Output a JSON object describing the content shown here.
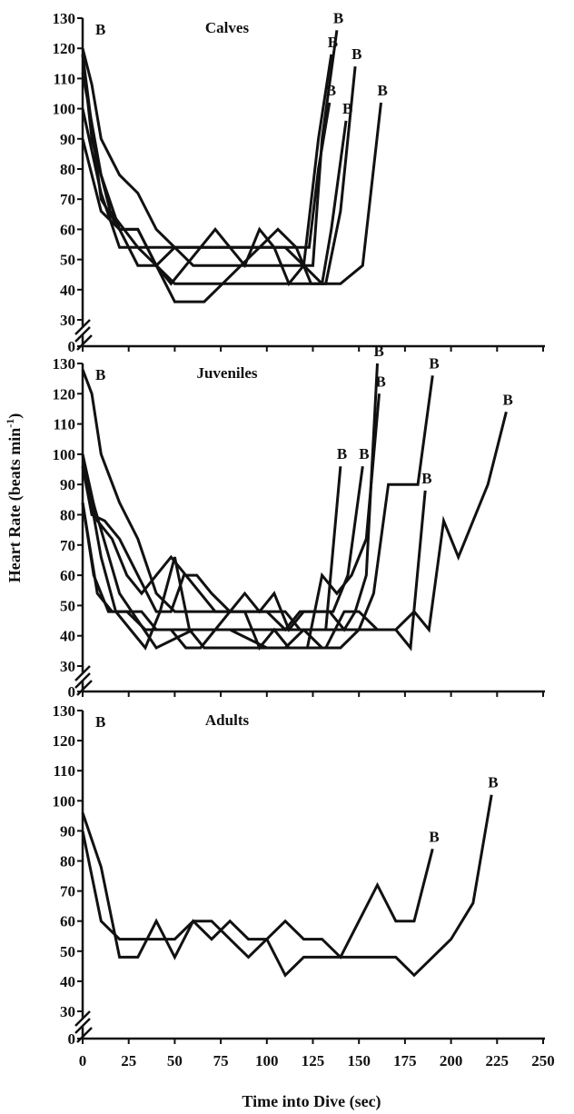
{
  "figure": {
    "ylabel": "Heart Rate (beats min",
    "ylabel_sup": "-1",
    "xlabel": "Time into Dive (sec)"
  },
  "chart_data": [
    {
      "type": "line",
      "title": "Calves",
      "xlabel": "Time into Dive (sec)",
      "ylabel": "Heart Rate (beats min-1)",
      "xlim": [
        0,
        250
      ],
      "ylim": [
        30,
        130
      ],
      "axis_break": true,
      "yticks": [
        "0",
        "30",
        "40",
        "50",
        "60",
        "70",
        "80",
        "90",
        "100",
        "110",
        "120",
        "130"
      ],
      "xticks": [
        0,
        25,
        50,
        75,
        100,
        125,
        150,
        175,
        200,
        225,
        250
      ],
      "grid": false,
      "series": [
        {
          "x": [
            0,
            5,
            15,
            30,
            42,
            55,
            65,
            75,
            88,
            95,
            105,
            115,
            123,
            128,
            134
          ],
          "y": [
            118,
            90,
            66,
            54,
            54,
            54,
            54,
            54,
            54,
            54,
            54,
            54,
            54,
            80,
            102
          ],
          "end_label": "B"
        },
        {
          "x": [
            0,
            5,
            10,
            20,
            30,
            40,
            50,
            60,
            70,
            80,
            90,
            100,
            110,
            118,
            125,
            130,
            138
          ],
          "y": [
            120,
            108,
            90,
            78,
            72,
            60,
            54,
            48,
            48,
            48,
            48,
            48,
            48,
            48,
            48,
            90,
            126
          ],
          "end_label": "B"
        },
        {
          "x": [
            0,
            10,
            20,
            30,
            40,
            50,
            60,
            70,
            80,
            90,
            100,
            110,
            120,
            130,
            135,
            143
          ],
          "y": [
            112,
            78,
            60,
            60,
            48,
            42,
            42,
            42,
            42,
            42,
            42,
            42,
            42,
            42,
            60,
            96
          ],
          "end_label": "B"
        },
        {
          "x": [
            0,
            10,
            20,
            30,
            40,
            48,
            56,
            64,
            72,
            80,
            88,
            96,
            104,
            112,
            120,
            128,
            135
          ],
          "y": [
            100,
            72,
            54,
            54,
            48,
            42,
            48,
            54,
            60,
            54,
            48,
            60,
            54,
            42,
            48,
            90,
            118
          ],
          "end_label": "B"
        },
        {
          "x": [
            0,
            10,
            20,
            30,
            40,
            50,
            58,
            66,
            76,
            86,
            96,
            106,
            116,
            124,
            132,
            140,
            148
          ],
          "y": [
            118,
            70,
            60,
            60,
            48,
            36,
            36,
            36,
            42,
            48,
            54,
            60,
            54,
            42,
            42,
            66,
            114
          ],
          "end_label": "B"
        },
        {
          "x": [
            0,
            10,
            20,
            30,
            40,
            50,
            60,
            70,
            80,
            90,
            100,
            110,
            120,
            130,
            140,
            152,
            162
          ],
          "y": [
            90,
            66,
            60,
            48,
            48,
            54,
            54,
            54,
            54,
            54,
            54,
            54,
            48,
            42,
            42,
            48,
            102
          ],
          "end_label": "B"
        }
      ]
    },
    {
      "type": "line",
      "title": "Juveniles",
      "xlabel": "Time into Dive (sec)",
      "ylabel": "Heart Rate (beats min-1)",
      "xlim": [
        0,
        250
      ],
      "ylim": [
        30,
        130
      ],
      "axis_break": true,
      "yticks": [
        "0",
        "30",
        "40",
        "50",
        "60",
        "70",
        "80",
        "90",
        "100",
        "110",
        "120",
        "130"
      ],
      "xticks": [
        0,
        25,
        50,
        75,
        100,
        125,
        150,
        175,
        200,
        225,
        250
      ],
      "grid": false,
      "series": [
        {
          "x": [
            0,
            5,
            10,
            20,
            30,
            40,
            50,
            60,
            70,
            80,
            90,
            100,
            110,
            118,
            126,
            132,
            140
          ],
          "y": [
            128,
            120,
            100,
            84,
            72,
            54,
            48,
            48,
            48,
            48,
            48,
            48,
            48,
            42,
            42,
            42,
            96
          ],
          "end_label": "B"
        },
        {
          "x": [
            0,
            8,
            16,
            24,
            32,
            40,
            48,
            56,
            64,
            72,
            80,
            88,
            96,
            104,
            112,
            120,
            128,
            136,
            144,
            152
          ],
          "y": [
            100,
            78,
            72,
            60,
            54,
            60,
            66,
            60,
            54,
            48,
            48,
            54,
            48,
            54,
            42,
            48,
            48,
            48,
            60,
            96
          ],
          "end_label": "B"
        },
        {
          "x": [
            0,
            5,
            12,
            20,
            30,
            40,
            48,
            55,
            62,
            70,
            80,
            90,
            100,
            110,
            118,
            126,
            134,
            142,
            148,
            154,
            160
          ],
          "y": [
            96,
            80,
            78,
            72,
            60,
            48,
            48,
            60,
            60,
            54,
            48,
            48,
            48,
            42,
            48,
            48,
            48,
            42,
            48,
            60,
            130
          ],
          "end_label": "B"
        },
        {
          "x": [
            0,
            10,
            18,
            26,
            34,
            42,
            50,
            58,
            66,
            74,
            82,
            90,
            98,
            106,
            114,
            122,
            130,
            138,
            146,
            154,
            161
          ],
          "y": [
            100,
            66,
            48,
            42,
            36,
            48,
            66,
            42,
            36,
            36,
            36,
            36,
            36,
            36,
            36,
            36,
            60,
            54,
            60,
            72,
            120
          ],
          "end_label": "B"
        },
        {
          "x": [
            0,
            6,
            14,
            24,
            34,
            44,
            52,
            60,
            70,
            80,
            90,
            100,
            110,
            120,
            130,
            140,
            150,
            158,
            166,
            174,
            182,
            190
          ],
          "y": [
            84,
            60,
            48,
            48,
            42,
            42,
            42,
            42,
            42,
            42,
            42,
            42,
            42,
            42,
            36,
            36,
            42,
            54,
            90,
            90,
            90,
            126
          ],
          "end_label": "B"
        },
        {
          "x": [
            0,
            8,
            16,
            24,
            32,
            40,
            48,
            56,
            64,
            72,
            80,
            88,
            96,
            104,
            112,
            122,
            132,
            142,
            150,
            160,
            170,
            178,
            186
          ],
          "y": [
            84,
            54,
            48,
            48,
            48,
            42,
            42,
            36,
            36,
            42,
            48,
            48,
            36,
            42,
            36,
            36,
            36,
            48,
            48,
            42,
            42,
            36,
            88
          ],
          "end_label": "B"
        },
        {
          "x": [
            0,
            20,
            40,
            60,
            80,
            100,
            110,
            120,
            130,
            140,
            150,
            160,
            170,
            180,
            188,
            196,
            204,
            212,
            220,
            230
          ],
          "y": [
            96,
            54,
            36,
            42,
            42,
            36,
            36,
            42,
            42,
            42,
            42,
            42,
            42,
            48,
            42,
            78,
            66,
            78,
            90,
            114
          ],
          "end_label": "B"
        }
      ]
    },
    {
      "type": "line",
      "title": "Adults",
      "xlabel": "Time into Dive (sec)",
      "ylabel": "Heart Rate (beats min-1)",
      "xlim": [
        0,
        250
      ],
      "ylim": [
        30,
        130
      ],
      "axis_break": true,
      "yticks": [
        "0",
        "30",
        "40",
        "50",
        "60",
        "70",
        "80",
        "90",
        "100",
        "110",
        "120",
        "130"
      ],
      "xticks": [
        0,
        25,
        50,
        75,
        100,
        125,
        150,
        175,
        200,
        225,
        250
      ],
      "grid": false,
      "series": [
        {
          "x": [
            0,
            10,
            20,
            30,
            40,
            50,
            60,
            70,
            80,
            90,
            100,
            110,
            120,
            130,
            140,
            150,
            160,
            170,
            180,
            190
          ],
          "y": [
            90,
            60,
            54,
            54,
            54,
            54,
            60,
            60,
            54,
            48,
            54,
            60,
            54,
            54,
            48,
            60,
            72,
            60,
            60,
            84
          ],
          "end_label": "B"
        },
        {
          "x": [
            0,
            10,
            20,
            30,
            40,
            50,
            60,
            70,
            80,
            90,
            100,
            110,
            120,
            130,
            140,
            150,
            160,
            170,
            180,
            190,
            200,
            212,
            222
          ],
          "y": [
            96,
            78,
            48,
            48,
            60,
            48,
            60,
            54,
            60,
            54,
            54,
            42,
            48,
            48,
            48,
            48,
            48,
            48,
            42,
            48,
            54,
            66,
            102
          ],
          "end_label": "B"
        }
      ]
    }
  ]
}
